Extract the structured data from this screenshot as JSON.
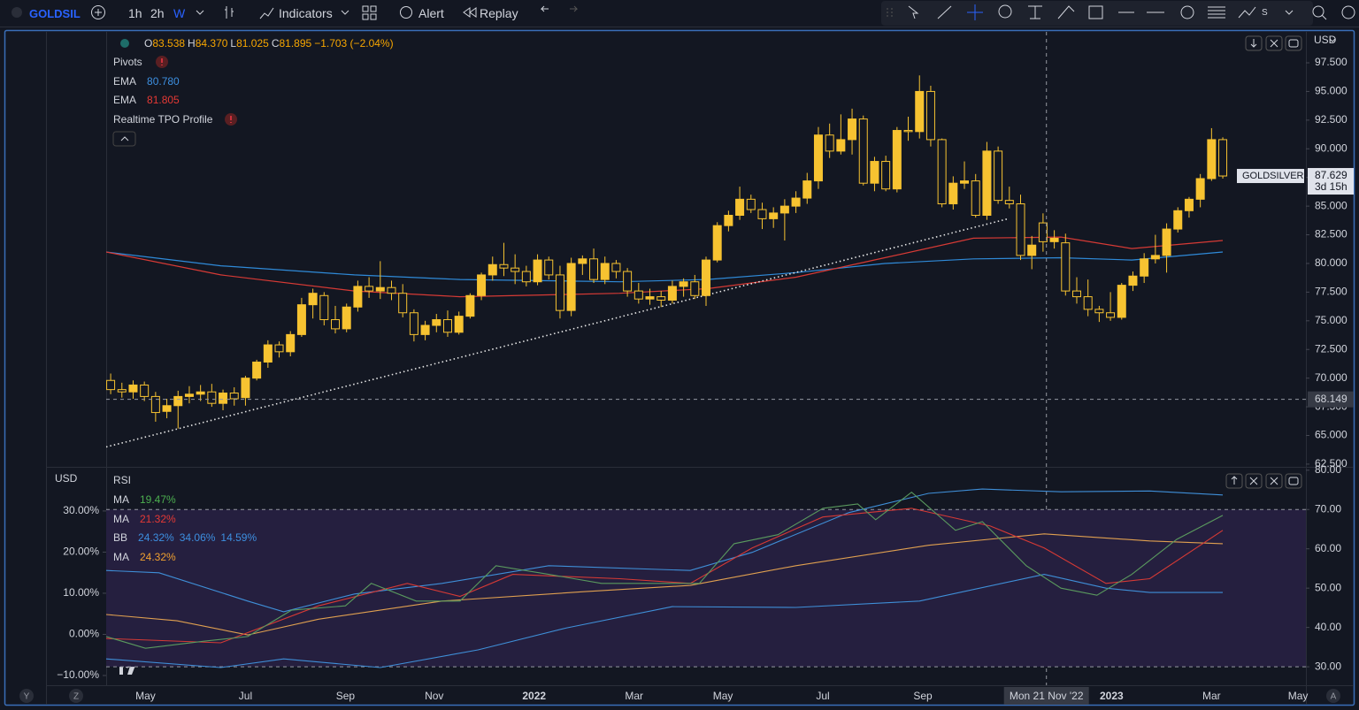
{
  "toolbar": {
    "symbol": "GOLDSIL",
    "intervals": [
      "1h",
      "2h",
      "W"
    ],
    "indicators": "Indicators",
    "alert": "Alert",
    "replay": "Replay",
    "extra": "S"
  },
  "legend": {
    "ohlc": [
      {
        "key": "O",
        "value": "83.538"
      },
      {
        "key": "H",
        "value": "84.370"
      },
      {
        "key": "L",
        "value": "81.025"
      },
      {
        "key": "C",
        "value": "81.895"
      }
    ],
    "change": "−1.703 (−2.04%)",
    "indicators": [
      {
        "name": "Pivots"
      },
      {
        "name": "EMA",
        "value": "80.780",
        "color": "#3d8fe0"
      },
      {
        "name": "EMA",
        "value": "81.805",
        "color": "#e53935"
      },
      {
        "name": "Realtime TPO Profile"
      }
    ]
  },
  "rsi_legend": [
    {
      "name": "RSI"
    },
    {
      "name": "MA",
      "values": [
        "19.47%"
      ],
      "color": "#4caf50"
    },
    {
      "name": "MA",
      "values": [
        "21.32%"
      ],
      "color": "#e53935"
    },
    {
      "name": "BB",
      "values": [
        "24.32%",
        "34.06%",
        "14.59%"
      ],
      "color": "#3d8fe0"
    },
    {
      "name": "MA",
      "values": [
        "24.32%"
      ],
      "color": "#f0a030"
    }
  ],
  "bottom_buttons": [
    "Y",
    "Z",
    "A"
  ],
  "chart_data": [
    {
      "type": "candlestick",
      "symbol_label": "GOLDSILVER",
      "countdown": "3d 15h",
      "currency": "USD",
      "last_price": 87.629,
      "color": "#f7c331",
      "candles": [
        [
          69.8,
          70.4,
          68.6,
          69.0
        ],
        [
          69.0,
          69.6,
          68.3,
          68.8
        ],
        [
          68.8,
          69.8,
          68.2,
          69.4
        ],
        [
          69.4,
          69.7,
          68.0,
          68.4
        ],
        [
          68.4,
          68.8,
          66.2,
          67.0
        ],
        [
          67.1,
          68.2,
          66.5,
          67.6
        ],
        [
          67.6,
          68.9,
          65.6,
          68.4
        ],
        [
          68.4,
          69.3,
          67.8,
          68.6
        ],
        [
          68.6,
          69.4,
          68.0,
          68.8
        ],
        [
          68.8,
          69.5,
          67.5,
          67.8
        ],
        [
          67.8,
          69.0,
          67.2,
          68.7
        ],
        [
          68.7,
          69.2,
          67.6,
          68.2
        ],
        [
          68.3,
          70.2,
          67.6,
          70.0
        ],
        [
          70.0,
          71.6,
          69.8,
          71.4
        ],
        [
          71.4,
          73.3,
          70.9,
          72.9
        ],
        [
          72.9,
          73.2,
          71.8,
          72.3
        ],
        [
          72.3,
          74.1,
          71.9,
          73.8
        ],
        [
          73.8,
          77.0,
          73.6,
          76.4
        ],
        [
          76.4,
          77.8,
          75.2,
          77.4
        ],
        [
          77.2,
          77.5,
          74.6,
          75.1
        ],
        [
          75.1,
          76.3,
          73.9,
          74.3
        ],
        [
          74.3,
          76.5,
          74.0,
          76.2
        ],
        [
          76.2,
          78.5,
          75.8,
          78.0
        ],
        [
          78.0,
          78.8,
          77.0,
          77.6
        ],
        [
          77.6,
          80.2,
          76.9,
          77.9
        ],
        [
          77.9,
          78.5,
          76.8,
          77.4
        ],
        [
          77.4,
          78.2,
          75.3,
          75.7
        ],
        [
          75.7,
          76.0,
          73.2,
          73.8
        ],
        [
          73.8,
          75.0,
          73.3,
          74.6
        ],
        [
          74.6,
          75.6,
          74.0,
          75.1
        ],
        [
          75.1,
          75.9,
          73.6,
          74.0
        ],
        [
          74.0,
          75.8,
          73.8,
          75.4
        ],
        [
          75.4,
          77.4,
          75.2,
          77.2
        ],
        [
          77.2,
          79.2,
          76.8,
          79.0
        ],
        [
          79.0,
          80.6,
          78.5,
          79.9
        ],
        [
          79.9,
          81.8,
          78.9,
          79.6
        ],
        [
          79.6,
          80.8,
          78.2,
          79.3
        ],
        [
          79.3,
          79.8,
          78.0,
          78.4
        ],
        [
          78.4,
          80.8,
          78.1,
          80.3
        ],
        [
          80.3,
          80.6,
          78.6,
          79.0
        ],
        [
          79.0,
          79.8,
          75.2,
          75.9
        ],
        [
          75.9,
          80.5,
          75.4,
          80.0
        ],
        [
          80.0,
          80.7,
          79.0,
          80.4
        ],
        [
          80.4,
          81.3,
          78.3,
          78.6
        ],
        [
          78.6,
          80.6,
          78.2,
          80.0
        ],
        [
          80.0,
          80.3,
          78.7,
          79.3
        ],
        [
          79.3,
          79.6,
          77.1,
          77.6
        ],
        [
          77.6,
          78.3,
          76.5,
          76.9
        ],
        [
          76.9,
          77.8,
          76.4,
          77.1
        ],
        [
          77.1,
          77.6,
          76.2,
          76.8
        ],
        [
          76.8,
          78.5,
          76.5,
          78.0
        ],
        [
          78.0,
          78.7,
          77.1,
          78.4
        ],
        [
          78.4,
          79.0,
          76.9,
          77.2
        ],
        [
          77.2,
          80.6,
          76.3,
          80.3
        ],
        [
          80.3,
          83.6,
          80.1,
          83.3
        ],
        [
          83.3,
          84.6,
          82.8,
          84.2
        ],
        [
          84.2,
          86.7,
          83.8,
          85.6
        ],
        [
          85.6,
          86.0,
          84.4,
          84.7
        ],
        [
          84.7,
          85.3,
          83.0,
          83.9
        ],
        [
          83.9,
          84.9,
          83.1,
          84.4
        ],
        [
          84.4,
          85.6,
          82.0,
          85.0
        ],
        [
          85.0,
          86.3,
          84.4,
          85.7
        ],
        [
          85.7,
          87.9,
          85.2,
          87.2
        ],
        [
          87.2,
          91.9,
          86.5,
          91.2
        ],
        [
          91.2,
          92.2,
          89.2,
          89.8
        ],
        [
          89.8,
          93.0,
          89.5,
          90.8
        ],
        [
          90.8,
          93.5,
          89.5,
          92.6
        ],
        [
          92.6,
          92.9,
          86.8,
          87.0
        ],
        [
          87.0,
          89.3,
          86.3,
          88.9
        ],
        [
          88.9,
          89.4,
          86.3,
          86.5
        ],
        [
          86.5,
          91.9,
          86.2,
          91.6
        ],
        [
          91.6,
          92.8,
          90.7,
          91.5
        ],
        [
          91.5,
          96.4,
          90.9,
          95.0
        ],
        [
          95.0,
          95.5,
          90.2,
          90.8
        ],
        [
          90.8,
          90.9,
          84.9,
          85.2
        ],
        [
          85.2,
          87.6,
          84.7,
          87.0
        ],
        [
          87.0,
          88.9,
          86.5,
          87.2
        ],
        [
          87.2,
          87.8,
          84.0,
          84.2
        ],
        [
          84.2,
          90.6,
          83.8,
          89.8
        ],
        [
          89.8,
          90.2,
          85.2,
          85.5
        ],
        [
          85.5,
          86.7,
          84.8,
          85.2
        ],
        [
          85.2,
          86.0,
          80.3,
          80.7
        ],
        [
          80.7,
          82.4,
          79.5,
          81.6
        ],
        [
          83.538,
          84.37,
          81.025,
          81.895
        ],
        [
          81.9,
          82.9,
          81.3,
          82.2
        ],
        [
          81.8,
          82.6,
          77.2,
          77.6
        ],
        [
          77.6,
          78.8,
          76.5,
          77.1
        ],
        [
          77.1,
          78.6,
          75.4,
          76.0
        ],
        [
          76.0,
          76.3,
          74.9,
          75.7
        ],
        [
          75.7,
          77.5,
          75.0,
          75.3
        ],
        [
          75.3,
          78.3,
          75.1,
          78.1
        ],
        [
          78.1,
          79.3,
          77.6,
          78.9
        ],
        [
          78.9,
          80.9,
          78.3,
          80.4
        ],
        [
          80.4,
          82.5,
          80.0,
          80.7
        ],
        [
          80.7,
          83.5,
          79.2,
          83.0
        ],
        [
          83.0,
          84.9,
          82.7,
          84.6
        ],
        [
          84.6,
          85.8,
          84.0,
          85.6
        ],
        [
          85.6,
          87.8,
          84.9,
          87.4
        ],
        [
          87.4,
          91.8,
          87.2,
          90.8
        ],
        [
          90.8,
          91.0,
          87.4,
          87.629
        ]
      ],
      "series": [
        {
          "color": "#2f8ad8",
          "x": [
            -0.4,
            9.8,
            21.7,
            31.1,
            45.3,
            53.1,
            61.0,
            68.9,
            76.8,
            84.6,
            90.9,
            99
          ],
          "values": [
            81.0,
            79.8,
            79.0,
            78.6,
            78.4,
            78.6,
            79.2,
            80.0,
            80.4,
            80.5,
            80.3,
            81.0
          ]
        },
        {
          "color": "#d63a35",
          "x": [
            -0.4,
            9.8,
            21.7,
            31.1,
            45.3,
            53.1,
            61.0,
            68.9,
            76.8,
            84.6,
            90.9,
            99
          ],
          "values": [
            81.0,
            79.0,
            77.6,
            77.1,
            77.4,
            77.8,
            78.8,
            80.5,
            82.2,
            82.3,
            81.3,
            82.0
          ]
        }
      ],
      "trendline": {
        "color": "#e8e8e8",
        "x": [
          -0.4,
          79.9
        ],
        "values": [
          64.0,
          83.9
        ]
      },
      "crosshair": {
        "x": 83.3,
        "label": "Mon 21 Nov '22",
        "price": 68.149
      },
      "xlim": [
        -0.4,
        106.4
      ],
      "xticks": [
        {
          "value": 3.1,
          "label": "May"
        },
        {
          "value": 12.0,
          "label": "Jul"
        },
        {
          "value": 20.9,
          "label": "Sep"
        },
        {
          "value": 28.8,
          "label": "Nov"
        },
        {
          "value": 37.7,
          "label": "2022"
        },
        {
          "value": 46.6,
          "label": "Mar"
        },
        {
          "value": 54.5,
          "label": "May"
        },
        {
          "value": 63.4,
          "label": "Jul"
        },
        {
          "value": 72.3,
          "label": "Sep"
        },
        {
          "value": 89.1,
          "label": "2023"
        },
        {
          "value": 98.0,
          "label": "Mar"
        },
        {
          "value": 105.7,
          "label": "May"
        }
      ],
      "ylim": [
        62.34,
        100.2
      ],
      "yticks": [
        {
          "value": 62.5,
          "label": "62.500"
        },
        {
          "value": 65,
          "label": "65.000"
        },
        {
          "value": 67.5,
          "label": "67.500"
        },
        {
          "value": 70,
          "label": "70.000"
        },
        {
          "value": 72.5,
          "label": "72.500"
        },
        {
          "value": 75,
          "label": "75.000"
        },
        {
          "value": 77.5,
          "label": "77.500"
        },
        {
          "value": 80,
          "label": "80.000"
        },
        {
          "value": 82.5,
          "label": "82.500"
        },
        {
          "value": 85,
          "label": "85.000"
        },
        {
          "value": 87.5,
          "label": "87.500"
        },
        {
          "value": 90,
          "label": "90.000"
        },
        {
          "value": 92.5,
          "label": "92.500"
        },
        {
          "value": 95,
          "label": "95.000"
        },
        {
          "value": 97.5,
          "label": "97.500"
        }
      ]
    },
    {
      "type": "line",
      "currency": "USD",
      "band_color": "#251f3f",
      "levels": [
        70,
        30
      ],
      "series": [
        {
          "color": "#3f8fd8",
          "x": [
            -0.4,
            4.3,
            12.2,
            15.4,
            21.7,
            29.5,
            39.0,
            51.6,
            57.1,
            65.7,
            72.8,
            77.6,
            84.6,
            92.5,
            99
          ],
          "values": [
            54.5,
            53.9,
            46.7,
            44.0,
            48.5,
            51.2,
            55.7,
            54.5,
            59.1,
            69.2,
            74.1,
            75.2,
            74.5,
            74.7,
            73.7
          ]
        },
        {
          "color": "#3f8fd8",
          "x": [
            -0.4,
            9.8,
            15.4,
            24.0,
            32.7,
            40.6,
            50.0,
            61.0,
            72.0,
            83.1,
            88.6,
            92.5,
            99
          ],
          "values": [
            32.0,
            29.8,
            32.0,
            29.8,
            34.3,
            39.9,
            45.3,
            45.1,
            46.7,
            53.5,
            50.0,
            48.9,
            48.9
          ]
        },
        {
          "color": "#e0a050",
          "x": [
            -0.4,
            5.9,
            12.2,
            18.5,
            29.5,
            42.1,
            51.6,
            61.0,
            72.8,
            83.1,
            92.5,
            99
          ],
          "values": [
            43.3,
            41.7,
            38.1,
            42.1,
            46.7,
            49.1,
            50.7,
            55.7,
            60.9,
            63.8,
            62.0,
            61.3
          ]
        },
        {
          "color": "#d63a35",
          "x": [
            -0.4,
            9.8,
            18.5,
            26.4,
            31.1,
            35.8,
            45.3,
            51.6,
            57.1,
            63.4,
            71.3,
            78.3,
            83.1,
            88.6,
            92.5,
            99
          ],
          "values": [
            37.2,
            36.1,
            45.5,
            51.2,
            47.9,
            53.5,
            52.4,
            51.2,
            60.2,
            68.1,
            70.3,
            65.8,
            60.2,
            51.2,
            52.4,
            64.7
          ]
        },
        {
          "color": "#5a9a5e",
          "x": [
            -0.4,
            3.1,
            8.3,
            12.2,
            16.1,
            20.9,
            23.2,
            27.2,
            31.1,
            34.3,
            39.0,
            43.7,
            48.4,
            52.4,
            55.5,
            59.4,
            63.4,
            66.5,
            68.1,
            71.3,
            75.2,
            77.6,
            81.5,
            84.6,
            87.8,
            90.9,
            94.9,
            99
          ],
          "values": [
            37.7,
            34.7,
            36.5,
            37.7,
            44.4,
            45.5,
            51.2,
            46.7,
            46.7,
            55.7,
            53.5,
            51.2,
            51.2,
            51.2,
            61.3,
            63.6,
            70.3,
            71.4,
            67.4,
            74.4,
            64.7,
            66.9,
            55.7,
            50.0,
            48.2,
            53.5,
            62.4,
            68.5
          ]
        }
      ],
      "ylim": [
        25.3,
        80.4
      ],
      "yticks": [
        {
          "value": 30,
          "label": "30.00"
        },
        {
          "value": 40,
          "label": "40.00"
        },
        {
          "value": 50,
          "label": "50.00"
        },
        {
          "value": 60,
          "label": "60.00"
        },
        {
          "value": 70,
          "label": "70.00"
        },
        {
          "value": 80,
          "label": "80.00"
        }
      ],
      "y2lim": [
        -12.37,
        40.3
      ],
      "y2ticks": [
        {
          "value": 30,
          "label": "30.00%"
        },
        {
          "value": 20,
          "label": "20.00%"
        },
        {
          "value": 10,
          "label": "10.00%"
        },
        {
          "value": 0,
          "label": "0.00%"
        },
        {
          "value": -10,
          "label": "−10.00%"
        }
      ]
    }
  ]
}
